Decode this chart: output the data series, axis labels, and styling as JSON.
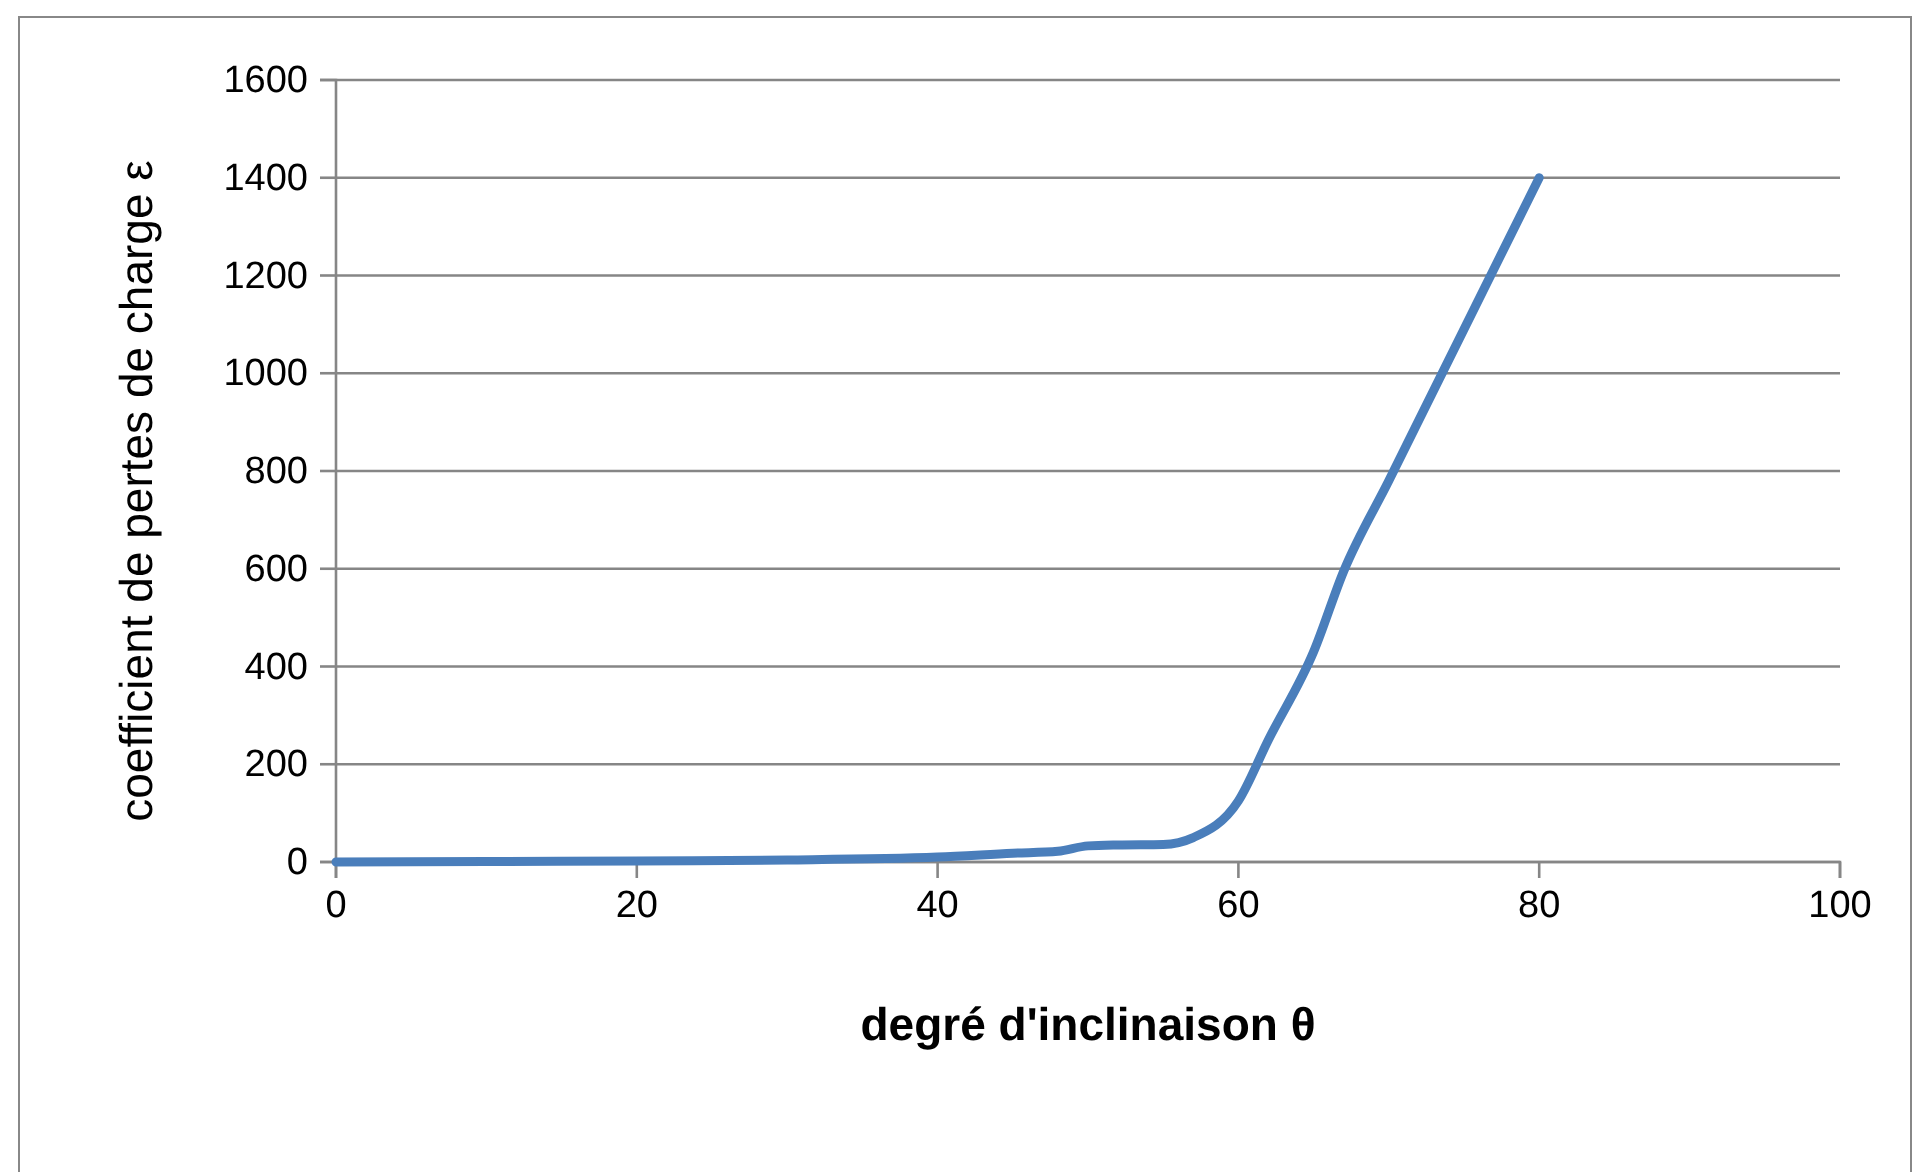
{
  "chart_data": {
    "type": "line",
    "xlabel": "degré d'inclinaison  θ",
    "ylabel": "coefficient de pertes de charge ε",
    "x": [
      0,
      10,
      20,
      30,
      40,
      45,
      48,
      50,
      52,
      55,
      57,
      60,
      62,
      65,
      67,
      70,
      75,
      80
    ],
    "series": [
      {
        "color": "#4a7ebb",
        "values": [
          0,
          1,
          2,
          4,
          10,
          18,
          22,
          33,
          35,
          36,
          50,
          125,
          250,
          430,
          595,
          780,
          1090,
          1400
        ]
      }
    ],
    "xlim": [
      0,
      100
    ],
    "xticks": [
      0,
      20,
      40,
      60,
      80,
      100
    ],
    "ylim": [
      0,
      1600
    ],
    "yticks": [
      0,
      200,
      400,
      600,
      800,
      1000,
      1200,
      1400,
      1600
    ],
    "grid": "y",
    "marker": "none",
    "line_style": "solid"
  }
}
